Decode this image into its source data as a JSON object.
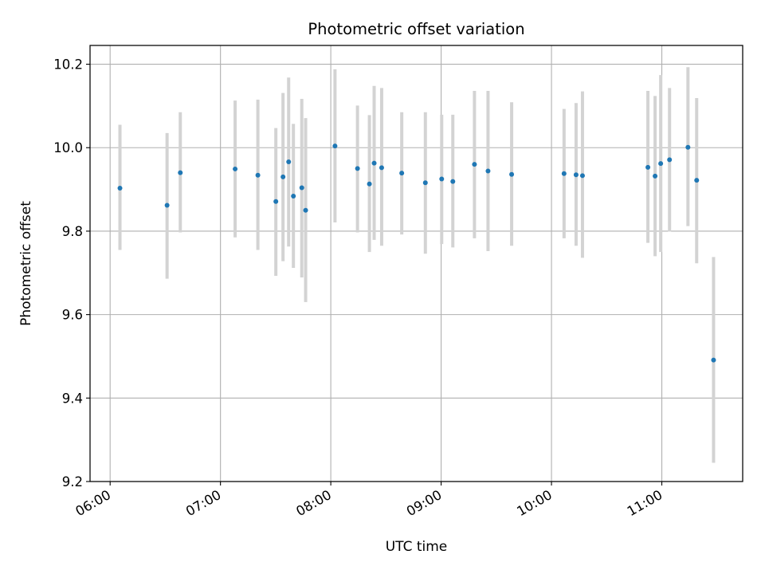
{
  "chart_data": {
    "type": "scatter",
    "title": "Photometric offset variation",
    "xlabel": "UTC time",
    "ylabel": "Photometric offset",
    "x_unit": "hours UTC",
    "xlim": [
      5.818,
      11.733
    ],
    "ylim": [
      9.2,
      10.245
    ],
    "x_ticks": [
      {
        "value": 6,
        "label": "06:00"
      },
      {
        "value": 7,
        "label": "07:00"
      },
      {
        "value": 8,
        "label": "08:00"
      },
      {
        "value": 9,
        "label": "09:00"
      },
      {
        "value": 10,
        "label": "10:00"
      },
      {
        "value": 11,
        "label": "11:00"
      }
    ],
    "y_ticks": [
      {
        "value": 9.2,
        "label": "9.2"
      },
      {
        "value": 9.4,
        "label": "9.4"
      },
      {
        "value": 9.6,
        "label": "9.6"
      },
      {
        "value": 9.8,
        "label": "9.8"
      },
      {
        "value": 10.0,
        "label": "10.0"
      },
      {
        "value": 10.2,
        "label": "10.2"
      }
    ],
    "grid": true,
    "colors": {
      "points": "#1f77b4",
      "errorbars": "#d3d3d3",
      "grid": "#b0b0b0",
      "axes": "#000000"
    },
    "series": [
      {
        "points": [
          {
            "x": 6.089,
            "y": 9.903,
            "ylo": 9.755,
            "yhi": 10.055
          },
          {
            "x": 6.516,
            "y": 9.862,
            "ylo": 9.686,
            "yhi": 10.035
          },
          {
            "x": 6.636,
            "y": 9.94,
            "ylo": 9.797,
            "yhi": 10.085
          },
          {
            "x": 7.133,
            "y": 9.949,
            "ylo": 9.785,
            "yhi": 10.113
          },
          {
            "x": 7.339,
            "y": 9.934,
            "ylo": 9.755,
            "yhi": 10.115
          },
          {
            "x": 7.502,
            "y": 9.871,
            "ylo": 9.693,
            "yhi": 10.047
          },
          {
            "x": 7.567,
            "y": 9.93,
            "ylo": 9.728,
            "yhi": 10.131
          },
          {
            "x": 7.618,
            "y": 9.966,
            "ylo": 9.763,
            "yhi": 10.168
          },
          {
            "x": 7.661,
            "y": 9.884,
            "ylo": 9.712,
            "yhi": 10.057
          },
          {
            "x": 7.737,
            "y": 9.904,
            "ylo": 9.689,
            "yhi": 10.117
          },
          {
            "x": 7.772,
            "y": 9.85,
            "ylo": 9.63,
            "yhi": 10.071
          },
          {
            "x": 8.038,
            "y": 10.004,
            "ylo": 9.821,
            "yhi": 10.188
          },
          {
            "x": 8.242,
            "y": 9.95,
            "ylo": 9.797,
            "yhi": 10.101
          },
          {
            "x": 8.35,
            "y": 9.913,
            "ylo": 9.75,
            "yhi": 10.078
          },
          {
            "x": 8.393,
            "y": 9.963,
            "ylo": 9.779,
            "yhi": 10.148
          },
          {
            "x": 8.461,
            "y": 9.952,
            "ylo": 9.765,
            "yhi": 10.143
          },
          {
            "x": 8.643,
            "y": 9.939,
            "ylo": 9.792,
            "yhi": 10.085
          },
          {
            "x": 8.857,
            "y": 9.916,
            "ylo": 9.746,
            "yhi": 10.085
          },
          {
            "x": 9.005,
            "y": 9.925,
            "ylo": 9.769,
            "yhi": 10.079
          },
          {
            "x": 9.106,
            "y": 9.919,
            "ylo": 9.761,
            "yhi": 10.079
          },
          {
            "x": 9.302,
            "y": 9.96,
            "ylo": 9.783,
            "yhi": 10.136
          },
          {
            "x": 9.425,
            "y": 9.944,
            "ylo": 9.752,
            "yhi": 10.136
          },
          {
            "x": 9.639,
            "y": 9.936,
            "ylo": 9.765,
            "yhi": 10.109
          },
          {
            "x": 10.114,
            "y": 9.938,
            "ylo": 9.783,
            "yhi": 10.093
          },
          {
            "x": 10.223,
            "y": 9.935,
            "ylo": 9.765,
            "yhi": 10.107
          },
          {
            "x": 10.281,
            "y": 9.933,
            "ylo": 9.736,
            "yhi": 10.135
          },
          {
            "x": 10.874,
            "y": 9.953,
            "ylo": 9.772,
            "yhi": 10.136
          },
          {
            "x": 10.939,
            "y": 9.932,
            "ylo": 9.74,
            "yhi": 10.124
          },
          {
            "x": 10.99,
            "y": 9.962,
            "ylo": 9.75,
            "yhi": 10.174
          },
          {
            "x": 11.07,
            "y": 9.971,
            "ylo": 9.799,
            "yhi": 10.143
          },
          {
            "x": 11.237,
            "y": 10.001,
            "ylo": 9.812,
            "yhi": 10.193
          },
          {
            "x": 11.316,
            "y": 9.922,
            "ylo": 9.723,
            "yhi": 10.119
          },
          {
            "x": 11.469,
            "y": 9.491,
            "ylo": 9.245,
            "yhi": 9.738
          }
        ]
      }
    ]
  }
}
